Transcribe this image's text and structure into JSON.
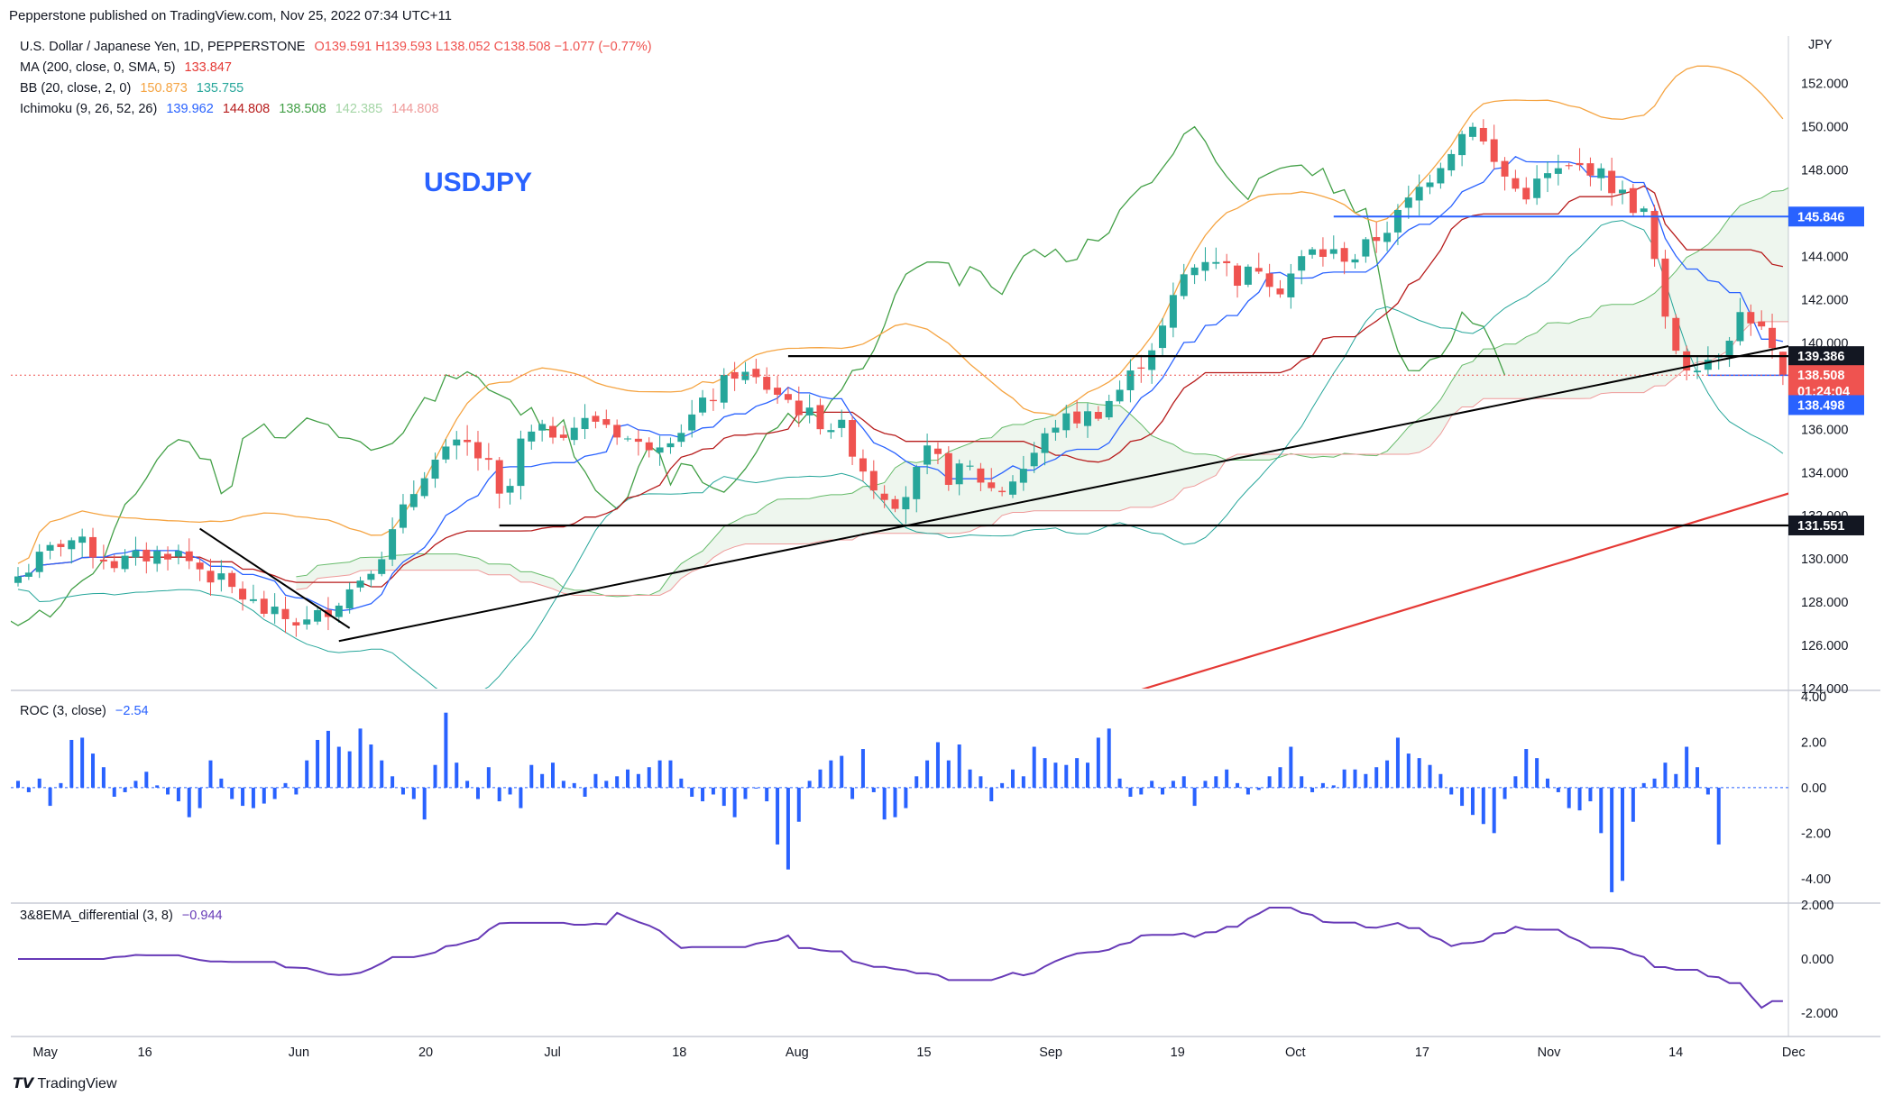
{
  "header": {
    "publisher": "Pepperstone published on TradingView.com, Nov 25, 2022 07:34 UTC+11"
  },
  "legend": {
    "symbol": "U.S. Dollar / Japanese Yen, 1D, PEPPERSTONE",
    "ohlc": "O139.591  H139.593  L138.052  C138.508  −1.077 (−0.77%)",
    "ma_label": "MA (200, close, 0, SMA, 5)",
    "ma_value": "133.847",
    "bb_label": "BB (20, close, 2, 0)",
    "bb_upper": "150.873",
    "bb_lower": "135.755",
    "ichi_label": "Ichimoku (9, 26, 52, 26)",
    "ichi_v1": "139.962",
    "ichi_v2": "144.808",
    "ichi_v3": "138.508",
    "ichi_v4": "142.385",
    "ichi_v5": "144.808"
  },
  "watermark_title": "USDJPY",
  "currency": "JPY",
  "footer": "TradingView",
  "colors": {
    "up": "#26a69a",
    "down": "#ef5350",
    "bbColor": "#f5a442",
    "tenkan": "#2962ff",
    "kijun": "#b71c1c",
    "chikou": "#43a047",
    "spanA": "#66bb6a",
    "spanB": "#ef9a9a",
    "ma": "#e53935",
    "roc": "#2962ff",
    "ema": "#673ab7",
    "blueLine": "#2962ff"
  },
  "chart_data": {
    "type": "candlestick",
    "x_ticks": [
      "May",
      "16",
      "Jun",
      "20",
      "Jul",
      "18",
      "Aug",
      "15",
      "Sep",
      "19",
      "Oct",
      "17",
      "Nov",
      "14",
      "Dec"
    ],
    "price_ticks": [
      "152.000",
      "150.000",
      "148.000",
      "146.000",
      "144.000",
      "142.000",
      "140.000",
      "138.000",
      "136.000",
      "134.000",
      "132.000",
      "130.000",
      "128.000",
      "126.000",
      "124.000"
    ],
    "price_range": [
      124,
      154.2
    ],
    "price_labels": [
      {
        "text": "145.846",
        "value": 145.846,
        "color": "#2962ff"
      },
      {
        "text": "139.386",
        "value": 139.386,
        "color": "#131722"
      },
      {
        "text": "138.508",
        "value": 138.508,
        "color": "#ef5350",
        "sub": "01:24:04"
      },
      {
        "text": "138.498",
        "value": 138.498,
        "color": "#2962ff"
      },
      {
        "text": "131.551",
        "value": 131.551,
        "color": "#131722"
      }
    ],
    "roc": {
      "label": "ROC (3, close)",
      "value": "−2.54",
      "ticks": [
        "4.00",
        "2.00",
        "0.00",
        "-2.00",
        "-4.00"
      ],
      "range": [
        -5,
        4.2
      ],
      "values": [
        0.3,
        -0.2,
        0.4,
        -0.8,
        0.2,
        2.1,
        2.2,
        1.5,
        0.9,
        -0.4,
        -0.2,
        0.3,
        0.7,
        0.1,
        -0.3,
        -0.6,
        -1.3,
        -0.9,
        1.2,
        0.4,
        -0.5,
        -0.8,
        -0.9,
        -0.7,
        -0.5,
        0.2,
        -0.3,
        1.2,
        2.1,
        2.5,
        1.8,
        1.6,
        2.6,
        1.9,
        1.2,
        0.5,
        -0.3,
        -0.5,
        -1.4,
        1.0,
        3.3,
        1.1,
        0.3,
        -0.5,
        0.9,
        -0.6,
        -0.3,
        -0.9,
        1.0,
        0.6,
        1.1,
        0.3,
        0.2,
        -0.4,
        0.6,
        0.3,
        0.5,
        0.8,
        0.6,
        0.9,
        1.2,
        1.2,
        0.4,
        -0.4,
        -0.6,
        -0.3,
        -0.8,
        -1.3,
        -0.5,
        0.0,
        -0.6,
        -2.5,
        -3.6,
        -1.5,
        0.3,
        0.8,
        1.2,
        1.4,
        -0.5,
        1.7,
        -0.2,
        -1.4,
        -1.3,
        -0.9,
        0.5,
        1.2,
        2.0,
        1.2,
        1.9,
        0.8,
        0.5,
        -0.6,
        0.2,
        0.8,
        0.5,
        1.8,
        1.3,
        1.1,
        1.0,
        1.3,
        1.1,
        2.2,
        2.6,
        0.4,
        -0.4,
        -0.3,
        0.3,
        -0.3,
        0.3,
        0.5,
        -0.8,
        0.3,
        0.5,
        0.8,
        0.2,
        -0.3,
        -0.1,
        0.5,
        0.9,
        1.8,
        0.5,
        -0.2,
        0.2,
        0.1,
        0.8,
        0.8,
        0.6,
        0.9,
        1.2,
        2.2,
        1.5,
        1.3,
        1.0,
        0.6,
        -0.3,
        -0.8,
        -1.2,
        -1.6,
        -2.0,
        -0.5,
        0.5,
        1.7,
        1.3,
        0.4,
        -0.2,
        -0.9,
        -1.0,
        -0.6,
        -2.0,
        -4.6,
        -4.1,
        -1.5,
        0.2,
        0.4,
        1.1,
        0.6,
        1.8,
        0.9,
        -0.3,
        -2.5
      ]
    },
    "ema": {
      "label": "3&8EMA_differential (3, 8)",
      "value": "−0.944",
      "ticks": [
        "2.000",
        "0.000",
        "-2.000"
      ],
      "range": [
        -2.8,
        2.0
      ]
    },
    "annotations": [
      "Resistance 139.386",
      "Support 131.551",
      "Resistance 145.846",
      "Uptrend line",
      "Downtrend line"
    ]
  }
}
